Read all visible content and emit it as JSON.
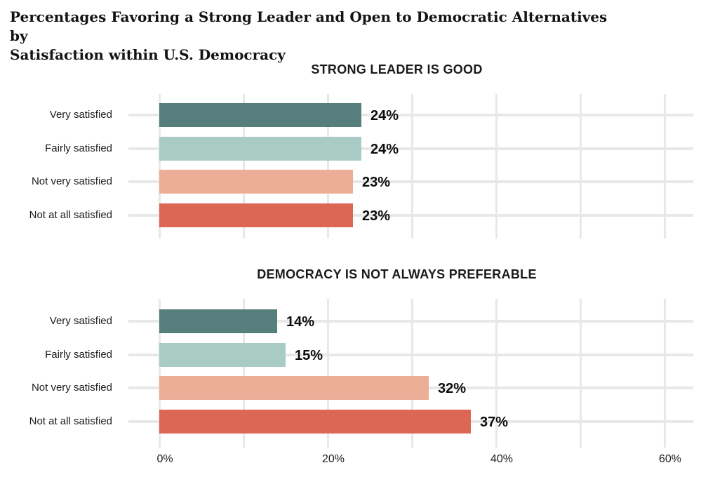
{
  "header": {
    "title_lines": [
      "Percentages Favoring a Strong Leader and Open to Democratic Alternatives by",
      "Satisfaction within U.S. Democracy"
    ]
  },
  "colors": {
    "very_satisfied": "#567E7C",
    "fairly_satisfied": "#A8CBC4",
    "not_very_satisfied": "#ECAE97",
    "not_at_all_satisfied": "#DB6754",
    "gridline": "#E8E8E8",
    "text": "#1C1C1C"
  },
  "chart_data": [
    {
      "type": "bar",
      "orientation": "horizontal",
      "title": "STRONG LEADER IS GOOD",
      "categories": [
        "Very satisfied",
        "Fairly satisfied",
        "Not very satisfied",
        "Not at all satisfied"
      ],
      "values": [
        24,
        24,
        23,
        23
      ],
      "data_labels": [
        "24%",
        "24%",
        "23%",
        "23%"
      ],
      "bar_colors": [
        "#567E7C",
        "#A8CBC4",
        "#ECAE97",
        "#DB6754"
      ],
      "xlim": [
        0,
        63
      ],
      "gridlines_x": [
        0,
        10,
        20,
        30,
        40,
        50,
        60
      ],
      "xticks": [],
      "grid": true,
      "legend": "none"
    },
    {
      "type": "bar",
      "orientation": "horizontal",
      "title": "DEMOCRACY IS NOT ALWAYS PREFERABLE",
      "categories": [
        "Very satisfied",
        "Fairly satisfied",
        "Not very satisfied",
        "Not at all satisfied"
      ],
      "values": [
        14,
        15,
        32,
        37
      ],
      "data_labels": [
        "14%",
        "15%",
        "32%",
        "37%"
      ],
      "bar_colors": [
        "#567E7C",
        "#A8CBC4",
        "#ECAE97",
        "#DB6754"
      ],
      "xlim": [
        0,
        63
      ],
      "gridlines_x": [
        0,
        10,
        20,
        30,
        40,
        50,
        60
      ],
      "xticks": [
        {
          "value": 0,
          "label": "0%"
        },
        {
          "value": 20,
          "label": "20%"
        },
        {
          "value": 40,
          "label": "40%"
        },
        {
          "value": 60,
          "label": "60%"
        }
      ],
      "grid": true,
      "legend": "none"
    }
  ]
}
